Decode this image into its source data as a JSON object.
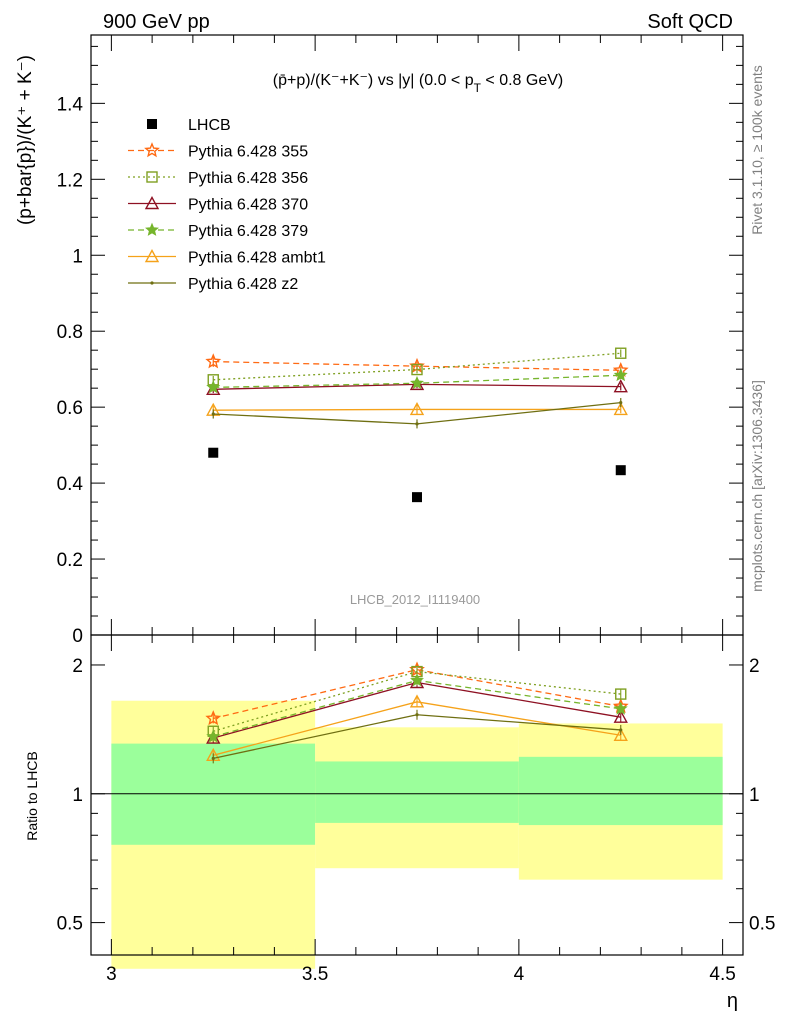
{
  "header": {
    "left": "900 GeV pp",
    "right": "Soft QCD"
  },
  "side_text": {
    "rivet": "Rivet 3.1.10, ≥ 100k events",
    "mcplots": "mcplots.cern.ch [arXiv:1306.3436]"
  },
  "watermark": "LHCB_2012_I1119400",
  "colors": {
    "LHCB": "#000000",
    "Pythia 6.428 355": "#ff6a13",
    "Pythia 6.428 356": "#7fa022",
    "Pythia 6.428 370": "#8e1123",
    "Pythia 6.428 379": "#76b52c",
    "Pythia 6.428 ambt1": "#f5a21a",
    "Pythia 6.428 z2": "#6f6f12",
    "band_inner": "#9bff9b",
    "band_outer": "#ffff9b"
  },
  "chart_data": [
    {
      "type": "scatter",
      "panel": "main",
      "title": "(p̄+p)/(K⁻+K⁻) vs |y| (0.0 < p_T < 0.8 GeV)",
      "ylabel": "(p+bar{p})/(K⁺ + K⁻)",
      "xlim": [
        2.95,
        4.55
      ],
      "ylim": [
        0,
        1.58
      ],
      "yticks": [
        0,
        0.2,
        0.4,
        0.6,
        0.8,
        1,
        1.2,
        1.4
      ],
      "ytick_labels": [
        "0",
        "0.2",
        "0.4",
        "0.6",
        "0.8",
        "1",
        "1.2",
        "1.4"
      ],
      "legend_position": "top-left",
      "x": [
        3.25,
        3.75,
        4.25
      ],
      "series": [
        {
          "name": "LHCB",
          "marker": "square-filled",
          "line": "none",
          "values": [
            0.48,
            0.363,
            0.434
          ],
          "errors": [
            0,
            0,
            0
          ]
        },
        {
          "name": "Pythia 6.428 355",
          "marker": "star-open",
          "line": "dashed",
          "values": [
            0.72,
            0.708,
            0.697
          ],
          "errors": [
            0.014,
            0.01,
            0.01
          ]
        },
        {
          "name": "Pythia 6.428 356",
          "marker": "square-open",
          "line": "dotted",
          "values": [
            0.672,
            0.699,
            0.742
          ],
          "errors": [
            0.01,
            0.01,
            0.01
          ]
        },
        {
          "name": "Pythia 6.428 370",
          "marker": "triangle-open",
          "line": "solid",
          "values": [
            0.647,
            0.66,
            0.654
          ],
          "errors": [
            0.01,
            0.01,
            0.01
          ]
        },
        {
          "name": "Pythia 6.428 379",
          "marker": "star-filled",
          "line": "dashed",
          "values": [
            0.652,
            0.663,
            0.684
          ],
          "errors": [
            0.01,
            0.01,
            0.01
          ]
        },
        {
          "name": "Pythia 6.428 ambt1",
          "marker": "triangle-open",
          "line": "solid",
          "values": [
            0.592,
            0.594,
            0.594
          ],
          "errors": [
            0.012,
            0.012,
            0.01
          ]
        },
        {
          "name": "Pythia 6.428 z2",
          "marker": "dot",
          "line": "solid",
          "values": [
            0.582,
            0.556,
            0.612
          ],
          "errors": [
            0.012,
            0.012,
            0.012
          ]
        }
      ]
    },
    {
      "type": "scatter",
      "panel": "ratio",
      "ylabel": "Ratio to LHCB",
      "xlabel": "η",
      "scale": "log",
      "xlim": [
        2.95,
        4.55
      ],
      "ylim": [
        0.42,
        2.35
      ],
      "yticks": [
        0.5,
        1,
        2
      ],
      "ytick_labels": [
        "0.5",
        "1",
        "2"
      ],
      "xticks": [
        3,
        3.5,
        4,
        4.5
      ],
      "xtick_labels": [
        "3",
        "3.5",
        "4",
        "4.5"
      ],
      "x": [
        3.25,
        3.75,
        4.25
      ],
      "bands": [
        {
          "x": [
            3.0,
            3.5
          ],
          "inner": [
            0.76,
            1.31
          ],
          "outer": [
            0.39,
            1.65
          ]
        },
        {
          "x": [
            3.5,
            4.0
          ],
          "inner": [
            0.855,
            1.19
          ],
          "outer": [
            0.67,
            1.43
          ]
        },
        {
          "x": [
            4.0,
            4.5
          ],
          "inner": [
            0.845,
            1.22
          ],
          "outer": [
            0.63,
            1.46
          ]
        }
      ],
      "series": [
        {
          "name": "Pythia 6.428 355",
          "values": [
            1.5,
            1.95,
            1.6
          ]
        },
        {
          "name": "Pythia 6.428 356",
          "values": [
            1.4,
            1.93,
            1.71
          ]
        },
        {
          "name": "Pythia 6.428 370",
          "values": [
            1.35,
            1.82,
            1.51
          ]
        },
        {
          "name": "Pythia 6.428 379",
          "values": [
            1.36,
            1.84,
            1.58
          ]
        },
        {
          "name": "Pythia 6.428 ambt1",
          "values": [
            1.23,
            1.64,
            1.37
          ]
        },
        {
          "name": "Pythia 6.428 z2",
          "values": [
            1.21,
            1.53,
            1.41
          ]
        }
      ]
    }
  ]
}
